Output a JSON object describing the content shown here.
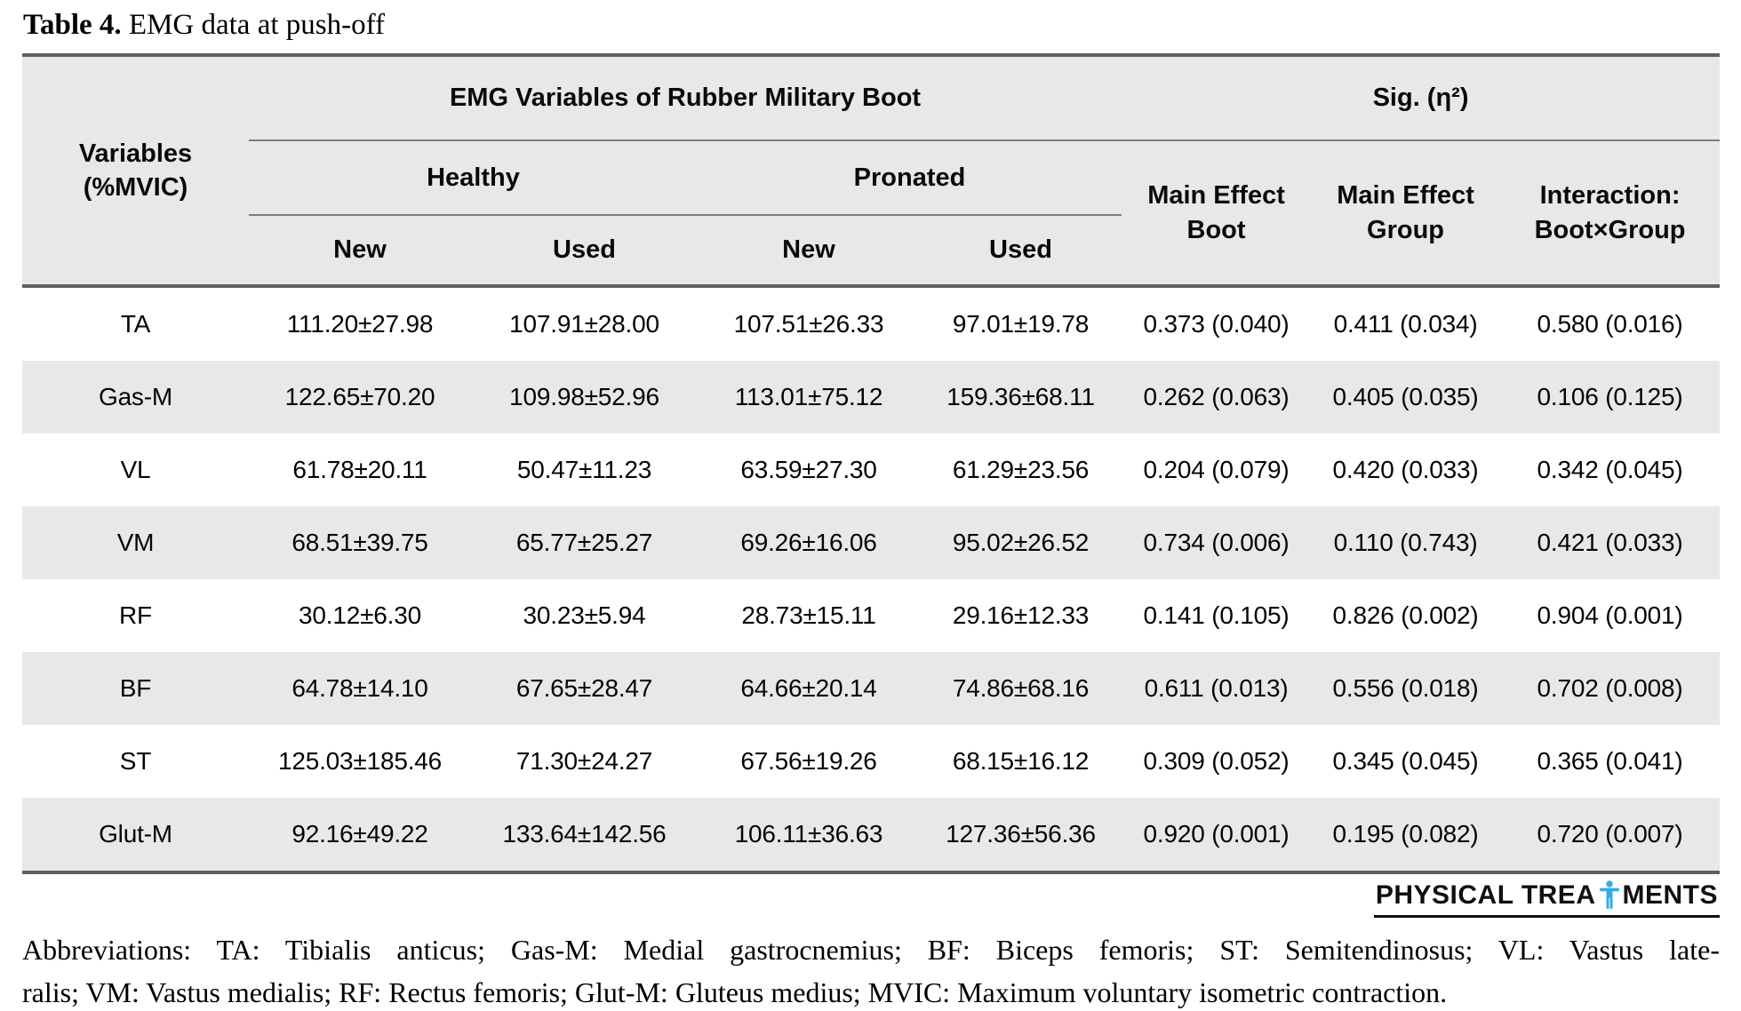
{
  "caption": {
    "bold": "Table 4.",
    "rest": " EMG data at push-off"
  },
  "table": {
    "header": {
      "variables": "Variables\n(%MVIC)",
      "emg_group": "EMG Variables of Rubber Military Boot",
      "sig_group": "Sig. (η²)",
      "healthy": "Healthy",
      "pronated": "Pronated",
      "main_effect_boot": "Main Effect\nBoot",
      "main_effect_group": "Main Effect\nGroup",
      "interaction": "Interaction:\nBoot×Group",
      "healthy_new": "New",
      "healthy_used": "Used",
      "pronated_new": "New",
      "pronated_used": "Used"
    },
    "rows": [
      {
        "variable": "TA",
        "values": [
          "111.20±27.98",
          "107.91±28.00",
          "107.51±26.33",
          "97.01±19.78",
          "0.373 (0.040)",
          "0.411 (0.034)",
          "0.580 (0.016)"
        ]
      },
      {
        "variable": "Gas-M",
        "values": [
          "122.65±70.20",
          "109.98±52.96",
          "113.01±75.12",
          "159.36±68.11",
          "0.262 (0.063)",
          "0.405 (0.035)",
          "0.106 (0.125)"
        ]
      },
      {
        "variable": "VL",
        "values": [
          "61.78±20.11",
          "50.47±11.23",
          "63.59±27.30",
          "61.29±23.56",
          "0.204 (0.079)",
          "0.420 (0.033)",
          "0.342 (0.045)"
        ]
      },
      {
        "variable": "VM",
        "values": [
          "68.51±39.75",
          "65.77±25.27",
          "69.26±16.06",
          "95.02±26.52",
          "0.734 (0.006)",
          "0.110 (0.743)",
          "0.421 (0.033)"
        ]
      },
      {
        "variable": "RF",
        "values": [
          "30.12±6.30",
          "30.23±5.94",
          "28.73±15.11",
          "29.16±12.33",
          "0.141 (0.105)",
          "0.826 (0.002)",
          "0.904 (0.001)"
        ]
      },
      {
        "variable": "BF",
        "values": [
          "64.78±14.10",
          "67.65±28.47",
          "64.66±20.14",
          "74.86±68.16",
          "0.611 (0.013)",
          "0.556 (0.018)",
          "0.702 (0.008)"
        ]
      },
      {
        "variable": "ST",
        "values": [
          "125.03±185.46",
          "71.30±24.27",
          "67.56±19.26",
          "68.15±16.12",
          "0.309 (0.052)",
          "0.345 (0.045)",
          "0.365 (0.041)"
        ]
      },
      {
        "variable": "Glut-M",
        "values": [
          "92.16±49.22",
          "133.64±142.56",
          "106.11±36.63",
          "127.36±56.36",
          "0.920 (0.001)",
          "0.195 (0.082)",
          "0.720 (0.007)"
        ]
      }
    ]
  },
  "logo": {
    "part1": "PHYSICAL TREA",
    "part2": "MENTS"
  },
  "footnote": {
    "line1": "Abbreviations: TA: Tibialis anticus; Gas-M: Medial gastrocnemius; BF: Biceps femoris; ST: Semitendinosus; VL: Vastus late-",
    "line2": "ralis; VM: Vastus medialis; RF: Rectus femoris; Glut-M: Gluteus medius; MVIC: Maximum voluntary isometric contraction."
  },
  "colors": {
    "band_gray": "#e8e8e8",
    "rule_dark": "#5f5f5f",
    "rule_light": "#7e7e7e",
    "logo_figure_blue": "#35ade3"
  }
}
